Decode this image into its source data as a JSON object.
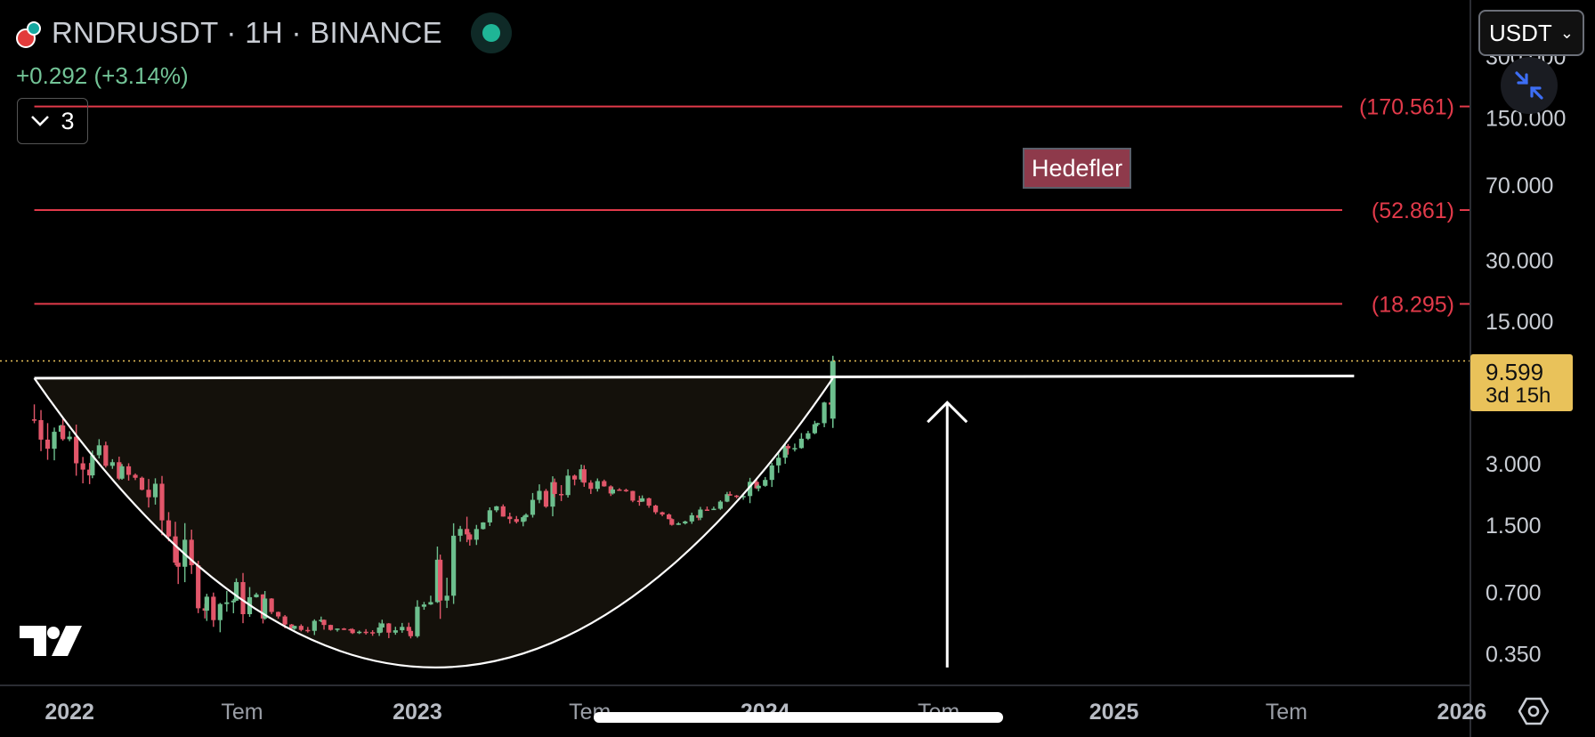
{
  "header": {
    "title": "RNDRUSDT · 1H · BINANCE",
    "change": "+0.292 (+3.14%)",
    "collapse_count": "3"
  },
  "currency_selector": {
    "label": "USDT"
  },
  "current_price": {
    "price": "9.599",
    "countdown": "3d 15h"
  },
  "annotation": {
    "label": "Hedefler"
  },
  "colors": {
    "up": "#6dbf8e",
    "down": "#e2566a",
    "target": "#e23a4a",
    "price_tag": "#e9c25a",
    "background": "#000000"
  },
  "icons": {
    "logo": "tradingview-logo-icon",
    "settings": "settings-hexagon-icon",
    "fab": "collapse-arrows-icon",
    "status": "market-open-dot-icon"
  },
  "chart_data": {
    "type": "candlestick",
    "y_scale": "log",
    "ylim": [
      0.25,
      380
    ],
    "xlim": [
      "2021-10-20",
      "2026-01-10"
    ],
    "y_ticks": [
      "300.000",
      "150.000",
      "70.000",
      "30.000",
      "15.000",
      "3.000",
      "1.500",
      "0.700",
      "0.350"
    ],
    "y_tick_values": [
      300,
      150,
      70,
      30,
      15,
      3,
      1.5,
      0.7,
      0.35
    ],
    "x_ticks": [
      {
        "label": "2022",
        "date": "2022-01-01",
        "bold": true
      },
      {
        "label": "Tem",
        "date": "2022-07-01",
        "bold": false
      },
      {
        "label": "2023",
        "date": "2023-01-01",
        "bold": true
      },
      {
        "label": "Tem",
        "date": "2023-07-01",
        "bold": false
      },
      {
        "label": "2024",
        "date": "2024-01-01",
        "bold": true
      },
      {
        "label": "Tem",
        "date": "2024-07-01",
        "bold": false
      },
      {
        "label": "2025",
        "date": "2025-01-01",
        "bold": true
      },
      {
        "label": "Tem",
        "date": "2025-07-01",
        "bold": false
      },
      {
        "label": "2026",
        "date": "2026-01-01",
        "bold": true
      }
    ],
    "target_lines": [
      {
        "label": "(170.561)",
        "value": 170.561
      },
      {
        "label": "(52.861)",
        "value": 52.861
      },
      {
        "label": "(18.295)",
        "value": 18.295
      }
    ],
    "target_lines_start": "2021-11-25",
    "neckline": {
      "start": "2021-11-25",
      "end": "2025-09-10",
      "value_start": 7.9,
      "value_end": 8.1
    },
    "cup_curve": {
      "start": "2021-11-25",
      "bottom": "2023-01-20",
      "end": "2024-03-12",
      "top_value": 7.9,
      "bottom_value": 0.3
    },
    "breakout_arrow": {
      "date": "2024-07-10",
      "from": 0.3,
      "to": 6.0
    },
    "current_price_line": 9.599,
    "candles": [
      [
        "2021-11-25",
        8.2,
        3.0
      ],
      [
        "2021-12-25",
        5.2,
        3.6
      ],
      [
        "2022-01-25",
        4.1,
        2.2
      ],
      [
        "2022-02-25",
        3.0,
        2.5
      ],
      [
        "2022-03-25",
        2.9,
        1.6
      ],
      [
        "2022-04-25",
        1.6,
        0.75
      ],
      [
        "2022-05-25",
        0.75,
        0.5
      ],
      [
        "2022-06-25",
        0.85,
        0.5
      ],
      [
        "2022-07-25",
        0.7,
        0.5
      ],
      [
        "2022-08-25",
        0.5,
        0.45
      ],
      [
        "2022-09-25",
        0.55,
        0.45
      ],
      [
        "2022-10-25",
        0.45,
        0.45
      ],
      [
        "2022-11-25",
        0.5,
        0.4
      ],
      [
        "2022-12-25",
        0.5,
        0.42
      ],
      [
        "2023-01-25",
        1.2,
        0.42
      ],
      [
        "2023-02-25",
        1.9,
        1.2
      ],
      [
        "2023-03-25",
        1.9,
        1.6
      ],
      [
        "2023-04-25",
        1.9,
        1.5
      ],
      [
        "2023-05-25",
        2.8,
        1.9
      ],
      [
        "2023-06-25",
        2.9,
        2.2
      ],
      [
        "2023-07-25",
        2.3,
        2.1
      ],
      [
        "2023-08-25",
        2.2,
        1.8
      ],
      [
        "2023-09-25",
        1.6,
        1.5
      ],
      [
        "2023-10-25",
        1.8,
        1.6
      ],
      [
        "2023-11-25",
        2.2,
        1.9
      ],
      [
        "2023-12-25",
        3.1,
        2.2
      ],
      [
        "2024-01-25",
        4.2,
        3.1
      ],
      [
        "2024-02-25",
        5.0,
        4.2
      ],
      [
        "2024-03-12",
        9.6,
        5.0
      ]
    ]
  }
}
